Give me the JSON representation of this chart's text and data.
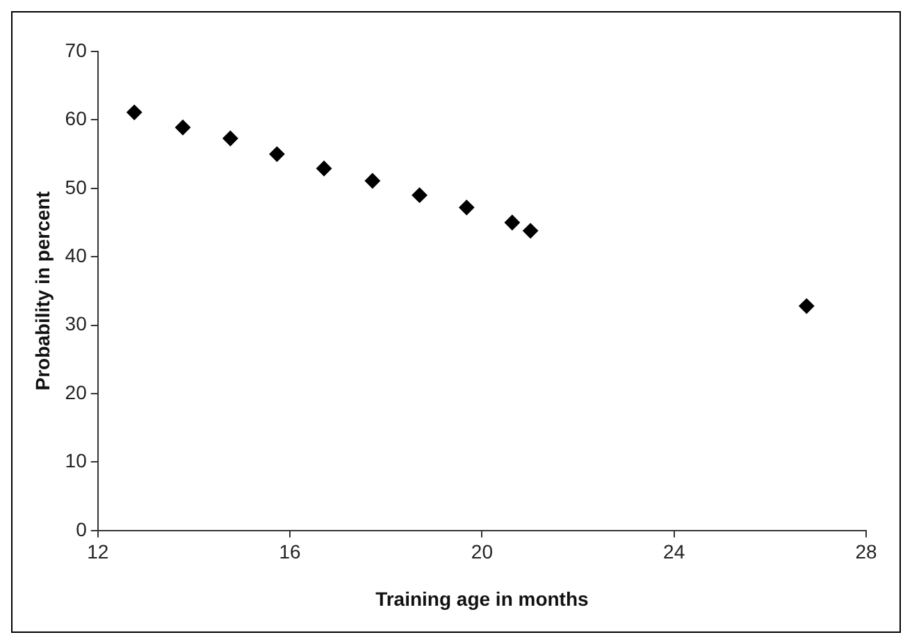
{
  "chart_data": {
    "type": "scatter",
    "xlabel": "Training age in months",
    "ylabel": "Probability in percent",
    "x": [
      12.76,
      13.77,
      14.76,
      15.73,
      16.71,
      17.72,
      18.7,
      19.68,
      20.63,
      21.01,
      26.76
    ],
    "series": [
      {
        "color": "#000000",
        "values": [
          61.1,
          58.9,
          57.3,
          55,
          52.9,
          51.1,
          49,
          47.2,
          45,
          43.8,
          32.8
        ]
      }
    ],
    "xlim": [
      12,
      28
    ],
    "xticks": [
      12,
      16,
      20,
      24,
      28
    ],
    "ylim": [
      0,
      70
    ],
    "yticks": [
      0,
      10,
      20,
      30,
      40,
      50,
      60,
      70
    ],
    "grid": false,
    "legend": false,
    "marker": "diamond"
  }
}
